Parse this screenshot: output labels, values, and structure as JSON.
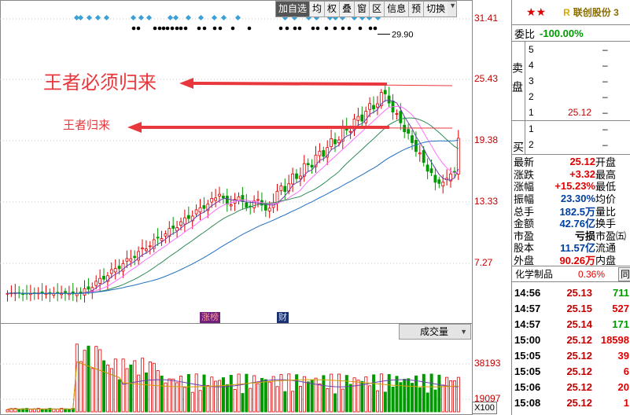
{
  "toolbar": {
    "buttons": [
      "加自选",
      "均",
      "权",
      "叠",
      "窗",
      "区",
      "信息",
      "预",
      "切换"
    ]
  },
  "price_axis": [
    "31.41",
    "25.43",
    "19.38",
    "13.33",
    "7.27"
  ],
  "volume_axis": [
    "38193",
    "19097"
  ],
  "peak_label": "29.90",
  "annotations": {
    "big": "王者必须归来",
    "small": "王者归来"
  },
  "indicators": {
    "zhang_bang": "涨榜",
    "cai": "财"
  },
  "volume_selector": "成交量",
  "volume_unit": "X100",
  "colors": {
    "up": "#e00000",
    "down": "#009a00",
    "arrow": "#e8383d",
    "ma_fast": "#6a3fb0",
    "ma_mid": "#ff70ff",
    "ma_slow": "#2e8b57",
    "ma_long": "#1f6fbf"
  },
  "quote": {
    "stock_name": "联创股份 3",
    "badge": "R",
    "stars": "★★",
    "weibi_label": "委比",
    "weibi_value": "-100.00%",
    "sell_label": "卖盘",
    "buy_label": "买",
    "sell": [
      {
        "lvl": "5",
        "px": "",
        "qty": "–"
      },
      {
        "lvl": "4",
        "px": "",
        "qty": "–"
      },
      {
        "lvl": "3",
        "px": "",
        "qty": "–"
      },
      {
        "lvl": "2",
        "px": "",
        "qty": "–"
      },
      {
        "lvl": "1",
        "px": "25.12",
        "qty": "–"
      }
    ],
    "buy": [
      {
        "lvl": "1",
        "px": "",
        "qty": "–"
      },
      {
        "lvl": "2",
        "px": "",
        "qty": "–"
      }
    ],
    "stats": [
      {
        "k": "最新",
        "v": "25.12",
        "cls": "red",
        "k2": "开盘"
      },
      {
        "k": "涨跌",
        "v": "+3.32",
        "cls": "red",
        "k2": "最高"
      },
      {
        "k": "涨幅",
        "v": "+15.23%",
        "cls": "red",
        "k2": "最低"
      },
      {
        "k": "振幅",
        "v": "23.30%",
        "cls": "blue",
        "k2": "均价"
      },
      {
        "k": "总手",
        "v": "182.5万",
        "cls": "blue",
        "k2": "量比"
      },
      {
        "k": "金额",
        "v": "42.76亿",
        "cls": "blue",
        "k2": "换手"
      },
      {
        "k": "市盈",
        "v": "亏损",
        "cls": "",
        "k2": "市盈㈤"
      },
      {
        "k": "股本",
        "v": "11.57亿",
        "cls": "blue",
        "k2": "流通"
      },
      {
        "k": "外盘",
        "v": "90.26万",
        "cls": "red",
        "k2": "内盘"
      }
    ],
    "sector_name": "化学制品",
    "sector_pct": "0.36%",
    "sector_btn": "同",
    "ticks": [
      {
        "t": "14:56",
        "p": "25.13",
        "v": "711",
        "c": "green"
      },
      {
        "t": "14:57",
        "p": "25.15",
        "v": "527",
        "c": "red"
      },
      {
        "t": "14:57",
        "p": "25.14",
        "v": "171",
        "c": "green"
      },
      {
        "t": "15:00",
        "p": "25.12",
        "v": "18598",
        "c": "red"
      },
      {
        "t": "15:05",
        "p": "25.12",
        "v": "39",
        "c": "red"
      },
      {
        "t": "15:05",
        "p": "25.12",
        "v": "6",
        "c": "red"
      },
      {
        "t": "15:06",
        "p": "25.12",
        "v": "20",
        "c": "red"
      },
      {
        "t": "15:08",
        "p": "25.12",
        "v": "1",
        "c": "red"
      }
    ]
  }
}
